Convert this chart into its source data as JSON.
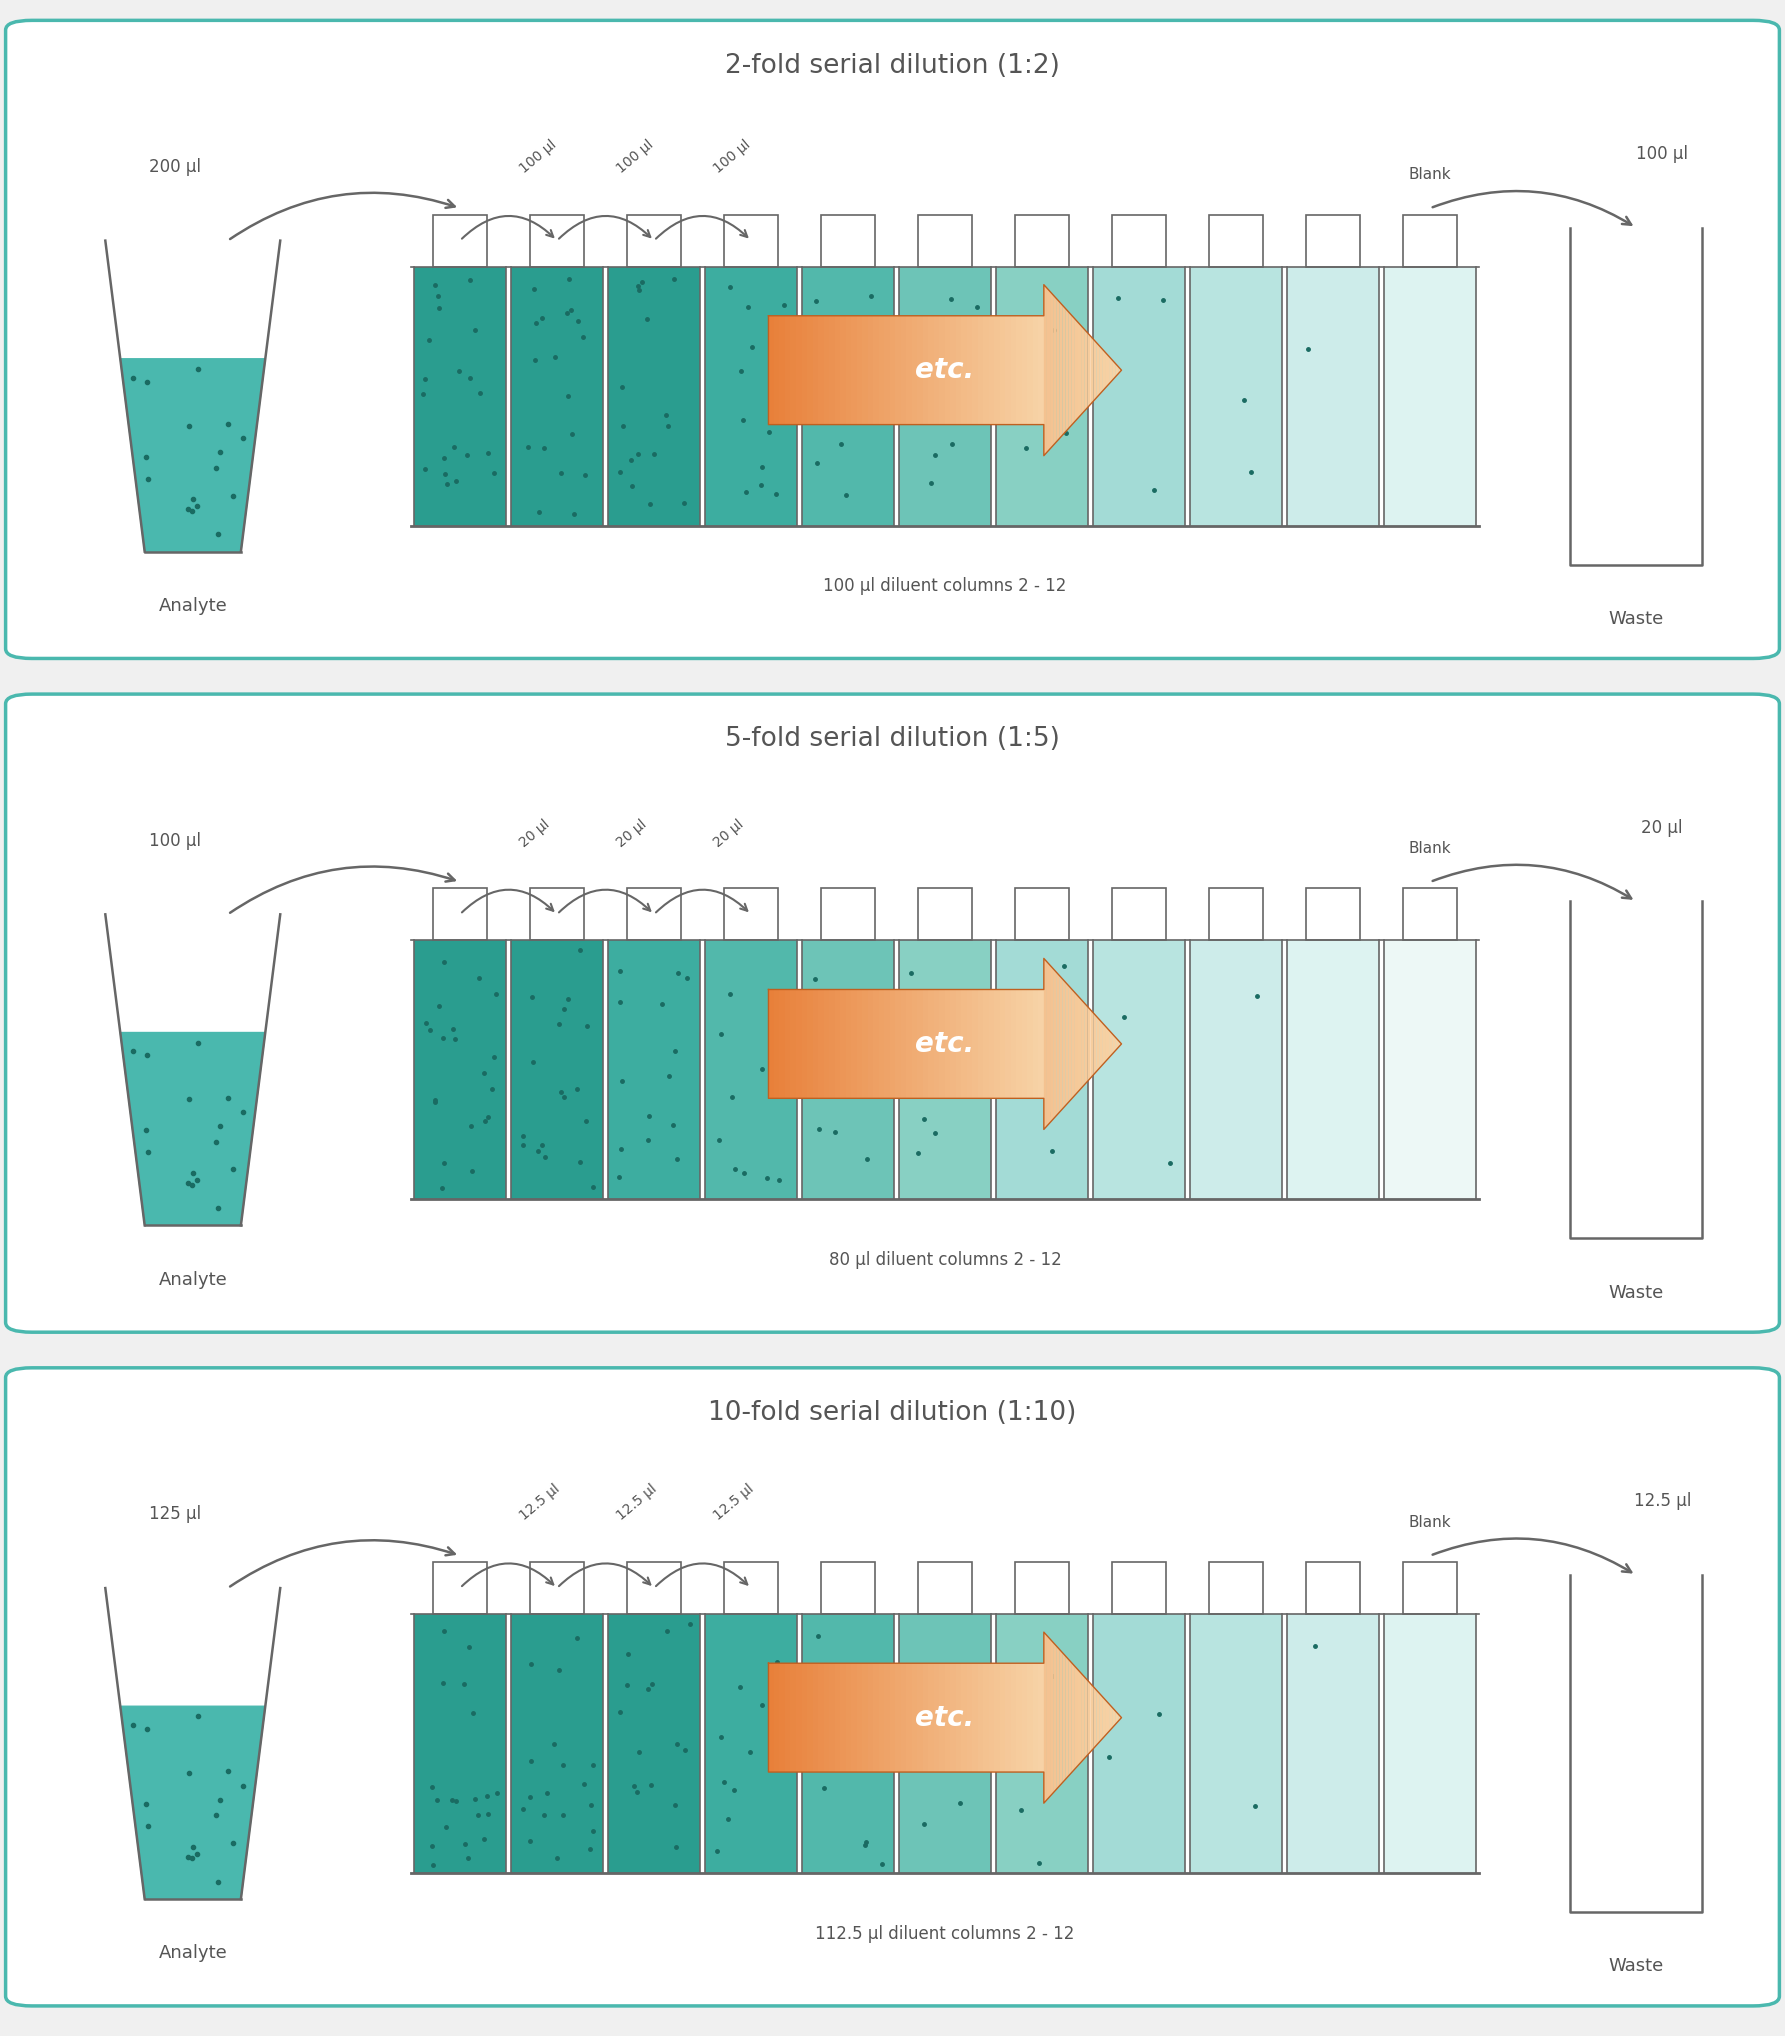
{
  "panels": [
    {
      "title": "2-fold serial dilution (1:2)",
      "analyte_vol": "200 µl",
      "transfer_vol": "100 µl",
      "diluent_label": "100 µl diluent columns 2 - 12",
      "waste_vol": "100 µl",
      "n_wells": 11,
      "fill_colors": [
        "#2a9d8f",
        "#2a9d8f",
        "#2a9d8f",
        "#3dada0",
        "#52b8ab",
        "#6dc4b7",
        "#88d0c3",
        "#a3dbd6",
        "#b8e4e0",
        "#cdecea",
        "#ddf3f1"
      ],
      "dot_counts": [
        20,
        18,
        16,
        12,
        9,
        7,
        5,
        3,
        2,
        1,
        0
      ]
    },
    {
      "title": "5-fold serial dilution (1:5)",
      "analyte_vol": "100 µl",
      "transfer_vol": "20 µl",
      "diluent_label": "80 µl diluent columns 2 - 12",
      "waste_vol": "20 µl",
      "n_wells": 11,
      "fill_colors": [
        "#2a9d8f",
        "#2a9d8f",
        "#3dada0",
        "#52b8ab",
        "#6dc4b7",
        "#88d0c3",
        "#a3dbd6",
        "#b8e4e0",
        "#cdecea",
        "#ddf3f1",
        "#edf8f6"
      ],
      "dot_counts": [
        20,
        18,
        14,
        10,
        7,
        5,
        3,
        2,
        1,
        0,
        0
      ]
    },
    {
      "title": "10-fold serial dilution (1:10)",
      "analyte_vol": "125 µl",
      "transfer_vol": "12.5 µl",
      "diluent_label": "112.5 µl diluent columns 2 - 12",
      "waste_vol": "12.5 µl",
      "n_wells": 11,
      "fill_colors": [
        "#2a9d8f",
        "#2a9d8f",
        "#2a9d8f",
        "#3dada0",
        "#52b8ab",
        "#6dc4b7",
        "#88d0c3",
        "#a3dbd6",
        "#b8e4e0",
        "#cdecea",
        "#ddf3f1"
      ],
      "dot_counts": [
        20,
        18,
        15,
        11,
        8,
        6,
        4,
        2,
        1,
        1,
        0
      ]
    }
  ],
  "bg_color": "#f0f0f0",
  "panel_bg": "#ffffff",
  "border_color": "#4ab8ae",
  "text_color": "#555555",
  "arrow_orange": "#e8803a",
  "arrow_peach": "#f7d4a8",
  "outline_color": "#666666",
  "dot_color": "#1a6b62"
}
